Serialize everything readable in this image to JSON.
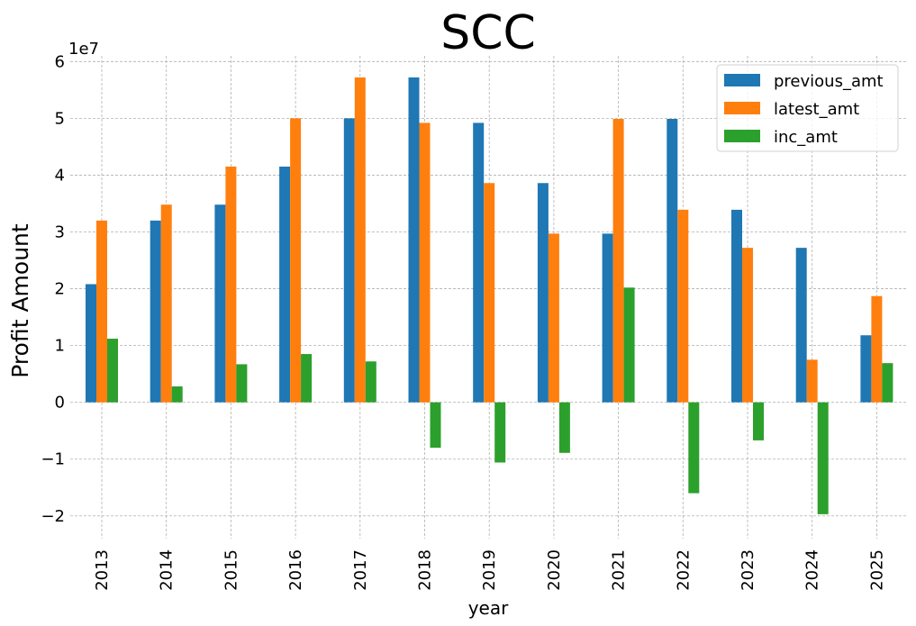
{
  "chart_data": {
    "type": "bar",
    "title": "SCC",
    "xlabel": "year",
    "ylabel": "Profit Amount",
    "y_offset_label": "1e7",
    "categories": [
      "2013",
      "2014",
      "2015",
      "2016",
      "2017",
      "2018",
      "2019",
      "2020",
      "2021",
      "2022",
      "2023",
      "2024",
      "2025"
    ],
    "series": [
      {
        "name": "previous_amt",
        "color": "#1f77b4",
        "values": [
          2.08,
          3.2,
          3.48,
          4.15,
          5.0,
          5.72,
          4.92,
          3.86,
          2.97,
          4.99,
          3.39,
          2.72,
          1.18
        ]
      },
      {
        "name": "latest_amt",
        "color": "#ff7f0e",
        "values": [
          3.2,
          3.48,
          4.15,
          5.0,
          5.72,
          4.92,
          3.86,
          2.97,
          4.99,
          3.39,
          2.72,
          0.75,
          1.87
        ]
      },
      {
        "name": "inc_amt",
        "color": "#2ca02c",
        "values": [
          1.12,
          0.28,
          0.67,
          0.85,
          0.72,
          -0.8,
          -1.06,
          -0.89,
          2.02,
          -1.6,
          -0.67,
          -1.97,
          0.69
        ]
      }
    ],
    "y_ticks": [
      "−2",
      "−1",
      "0",
      "1",
      "2",
      "3",
      "4",
      "5",
      "6"
    ],
    "y_tick_values": [
      -2,
      -1,
      0,
      1,
      2,
      3,
      4,
      5,
      6
    ],
    "ylim": [
      -2.4,
      6.1
    ],
    "grid": true,
    "legend_position": "top-right"
  }
}
